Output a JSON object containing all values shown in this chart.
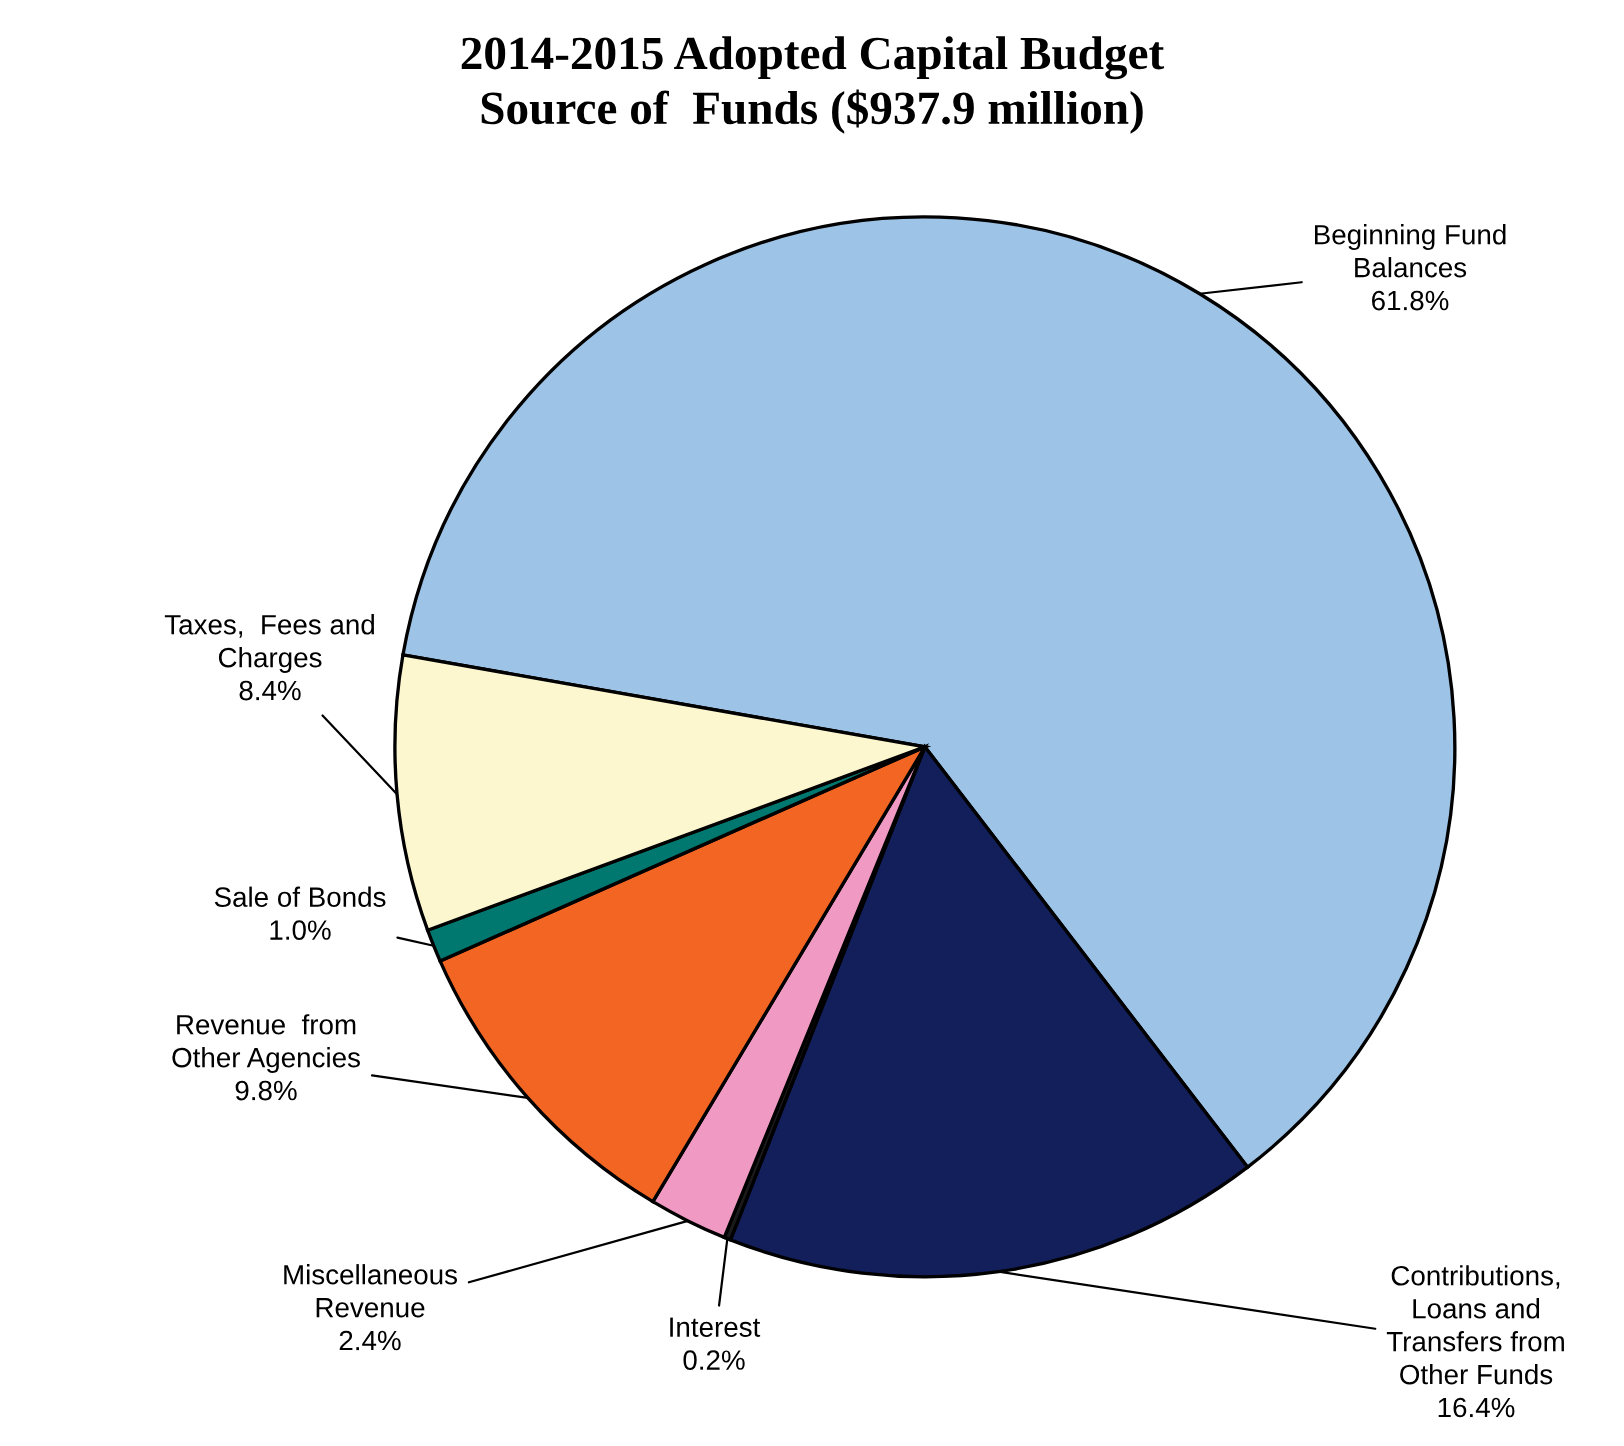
{
  "chart_data": {
    "type": "pie",
    "title": "2014-2015 Adopted Capital Budget\nSource of  Funds ($937.9 million)",
    "categories": [
      "Beginning Fund\nBalances",
      "Contributions,\nLoans and\nTransfers from\nOther Funds",
      "Interest",
      "Miscellaneous\nRevenue",
      "Revenue  from\nOther Agencies",
      "Sale of Bonds",
      "Taxes,  Fees and\nCharges"
    ],
    "values": [
      61.8,
      16.4,
      0.2,
      2.4,
      9.8,
      1.0,
      8.4
    ],
    "colors": [
      "#9dc3e6",
      "#121f5a",
      "#1a1a1a",
      "#f09ac3",
      "#f26522",
      "#00786f",
      "#fdf7d0"
    ],
    "value_labels": [
      "61.8%",
      "16.4%",
      "0.2%",
      "2.4%",
      "9.8%",
      "1.0%",
      "8.4%"
    ],
    "legend": false
  }
}
